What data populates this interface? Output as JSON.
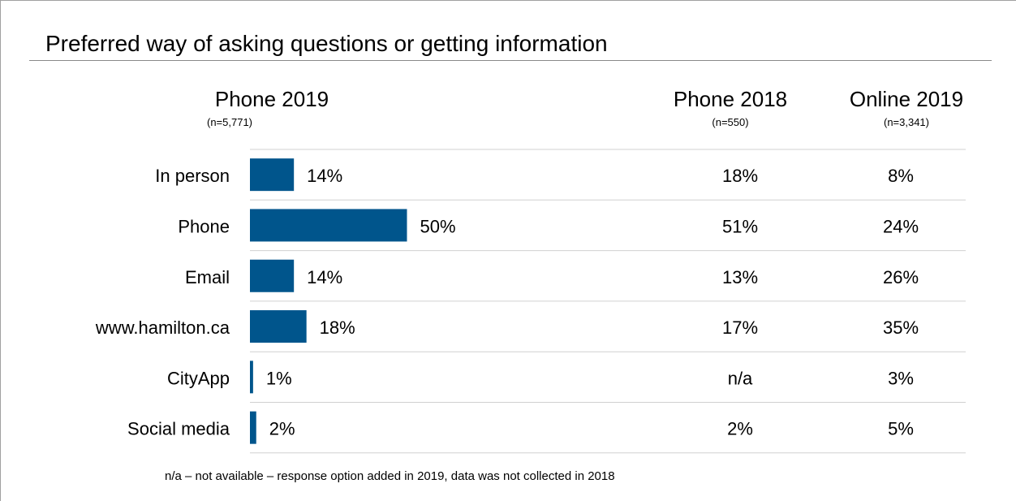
{
  "title": "Preferred way of asking questions or getting information",
  "columns": [
    {
      "heading": "Phone 2019",
      "n": "(n=5,771)"
    },
    {
      "heading": "Phone 2018",
      "n": "(n=550)"
    },
    {
      "heading": "Online 2019",
      "n": "(n=3,341)"
    }
  ],
  "footnote": "n/a – not available – response option added in 2019, data was not collected in 2018",
  "colors": {
    "bar": "#00558c",
    "divider": "#d0d0d0"
  },
  "chart_data": {
    "type": "bar",
    "orientation": "horizontal",
    "title": "Preferred way of asking questions or getting information",
    "categories": [
      "In person",
      "Phone",
      "Email",
      "www.hamilton.ca",
      "CityApp",
      "Social media"
    ],
    "series": [
      {
        "name": "Phone 2019",
        "subtitle": "(n=5,771)",
        "values": [
          14,
          50,
          14,
          18,
          1,
          2
        ],
        "labels": [
          "14%",
          "50%",
          "14%",
          "18%",
          "1%",
          "2%"
        ]
      },
      {
        "name": "Phone 2018",
        "subtitle": "(n=550)",
        "values": [
          18,
          51,
          13,
          17,
          null,
          2
        ],
        "labels": [
          "18%",
          "51%",
          "13%",
          "17%",
          "n/a",
          "2%"
        ]
      },
      {
        "name": "Online 2019",
        "subtitle": "(n=3,341)",
        "values": [
          8,
          24,
          26,
          35,
          3,
          5
        ],
        "labels": [
          "8%",
          "24%",
          "26%",
          "35%",
          "3%",
          "5%"
        ]
      }
    ],
    "xlim": [
      0,
      100
    ],
    "grid": false,
    "legend": "none"
  }
}
